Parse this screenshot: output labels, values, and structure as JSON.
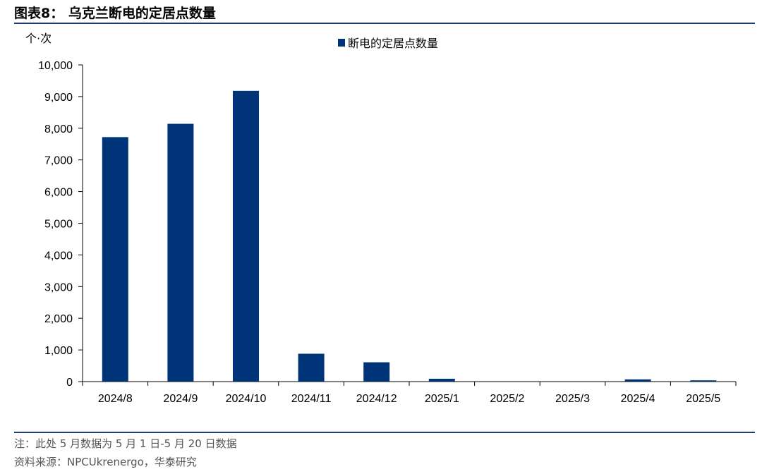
{
  "header": {
    "title": "图表8：  乌克兰断电的定居点数量"
  },
  "chart_data": {
    "type": "bar",
    "unit_label": "个·次",
    "categories": [
      "2024/8",
      "2024/9",
      "2024/10",
      "2024/11",
      "2024/12",
      "2025/1",
      "2025/2",
      "2025/3",
      "2025/4",
      "2025/5"
    ],
    "series": [
      {
        "name": "断电的定居点数量",
        "color": "#003478",
        "values": [
          7720,
          8140,
          9180,
          880,
          610,
          90,
          0,
          0,
          70,
          40
        ]
      }
    ],
    "ylim": [
      0,
      10000
    ],
    "yticks": [
      0,
      1000,
      2000,
      3000,
      4000,
      5000,
      6000,
      7000,
      8000,
      9000,
      10000
    ],
    "ytick_labels": [
      "0",
      "1,000",
      "2,000",
      "3,000",
      "4,000",
      "5,000",
      "6,000",
      "7,000",
      "8,000",
      "9,000",
      "10,000"
    ],
    "grid": false,
    "legend_position": "top-center"
  },
  "footer": {
    "note": "注：此处 5 月数据为 5 月 1 日-5 月 20 日数据",
    "source": "资料来源：NPCUkrenergo，华泰研究"
  },
  "colors": {
    "bar": "#003478",
    "rule": "#1f3f73",
    "axis": "#000000"
  }
}
